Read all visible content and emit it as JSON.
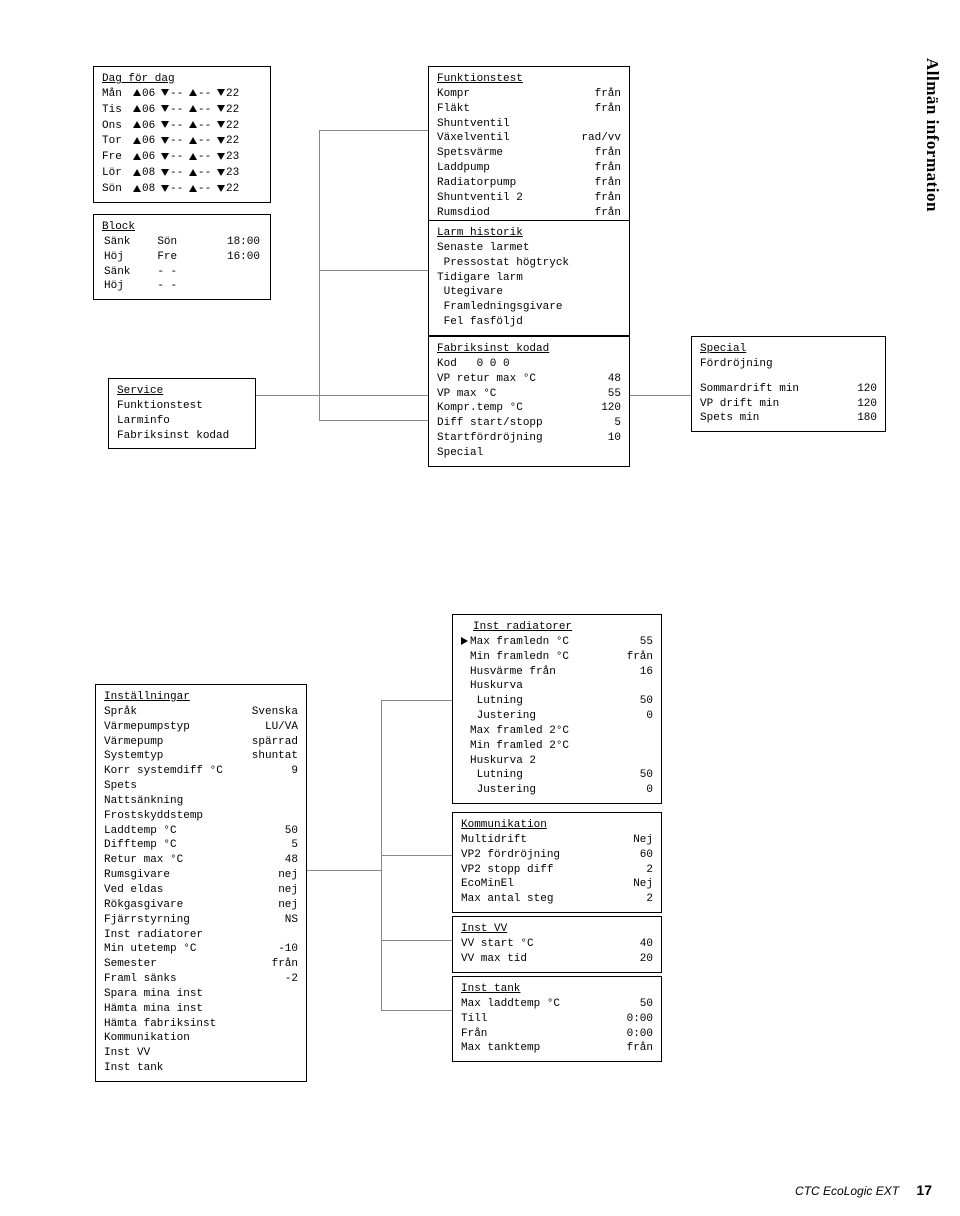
{
  "side_title": "Allmän information",
  "footer": {
    "product": "CTC EcoLogic EXT",
    "page": "17"
  },
  "dag": {
    "title": "Dag för dag",
    "days": [
      "Mån",
      "Tis",
      "Ons",
      "Tor",
      "Fre",
      "Lör",
      "Sön"
    ],
    "vals": [
      [
        "06",
        "--",
        "--",
        "22"
      ],
      [
        "06",
        "--",
        "--",
        "22"
      ],
      [
        "06",
        "--",
        "--",
        "22"
      ],
      [
        "06",
        "--",
        "--",
        "22"
      ],
      [
        "06",
        "--",
        "--",
        "23"
      ],
      [
        "08",
        "--",
        "--",
        "23"
      ],
      [
        "08",
        "--",
        "--",
        "22"
      ]
    ]
  },
  "block": {
    "title": "Block",
    "rows": [
      [
        "Sänk",
        "Sön",
        "18:00"
      ],
      [
        "Höj",
        "Fre",
        "16:00"
      ],
      [
        "Sänk",
        "- -",
        ""
      ],
      [
        "Höj",
        "- -",
        ""
      ]
    ]
  },
  "service": {
    "title": "Service",
    "items": [
      "Funktionstest",
      "Larminfo",
      "Fabriksinst kodad"
    ]
  },
  "funktionstest": {
    "title": "Funktionstest",
    "items": [
      [
        "Kompr",
        "från"
      ],
      [
        "Fläkt",
        "från"
      ],
      [
        "Shuntventil",
        ""
      ],
      [
        "Växelventil",
        "rad/vv"
      ],
      [
        "Spetsvärme",
        "från"
      ],
      [
        "Laddpump",
        "från"
      ],
      [
        "Radiatorpump",
        "från"
      ],
      [
        "Shuntventil 2",
        "från"
      ],
      [
        "Rumsdiod",
        "från"
      ]
    ]
  },
  "larm": {
    "title": "Larm historik",
    "lines": [
      "Senaste larmet",
      " Pressostat högtryck",
      "Tidigare larm",
      " Utegivare",
      " Framledningsgivare",
      " Fel fasföljd"
    ]
  },
  "fabriks": {
    "title": "Fabriksinst kodad",
    "items": [
      [
        "Kod   0 0 0",
        ""
      ],
      [
        "VP retur max °C",
        "48"
      ],
      [
        "VP max °C",
        "55"
      ],
      [
        "Kompr.temp °C",
        "120"
      ],
      [
        "Diff start/stopp",
        "5"
      ],
      [
        "Startfördröjning",
        "10"
      ],
      [
        "Special",
        ""
      ]
    ]
  },
  "special": {
    "title": "Special",
    "subtitle": "Fördröjning",
    "items": [
      [
        "Sommardrift min",
        "120"
      ],
      [
        "VP drift min",
        "120"
      ],
      [
        "Spets min",
        "180"
      ]
    ]
  },
  "installningar": {
    "title": "Inställningar",
    "items": [
      [
        "Språk",
        "Svenska"
      ],
      [
        "Värmepumpstyp",
        "LU/VA"
      ],
      [
        "Värmepump",
        "spärrad"
      ],
      [
        "Systemtyp",
        "shuntat"
      ],
      [
        "Korr systemdiff °C",
        "9"
      ],
      [
        "Spets",
        ""
      ],
      [
        "Nattsänkning",
        ""
      ],
      [
        "Frostskyddstemp",
        ""
      ],
      [
        "Laddtemp °C",
        "50"
      ],
      [
        "Difftemp °C",
        "5"
      ],
      [
        "Retur max °C",
        "48"
      ],
      [
        "Rumsgivare",
        "nej"
      ],
      [
        "Ved eldas",
        "nej"
      ],
      [
        "Rökgasgivare",
        "nej"
      ],
      [
        "Fjärrstyrning",
        "NS"
      ],
      [
        "Inst radiatorer",
        ""
      ],
      [
        "Min utetemp °C",
        "-10"
      ],
      [
        "Semester",
        "från"
      ],
      [
        "Framl sänks",
        "-2"
      ],
      [
        "Spara mina inst",
        ""
      ],
      [
        "Hämta mina inst",
        ""
      ],
      [
        "Hämta fabriksinst",
        ""
      ],
      [
        "Kommunikation",
        ""
      ],
      [
        "Inst VV",
        ""
      ],
      [
        "Inst tank",
        ""
      ]
    ]
  },
  "inst_rad": {
    "title": "Inst radiatorer",
    "items": [
      [
        "Max framledn °C",
        "55"
      ],
      [
        "Min framledn °C",
        "från"
      ],
      [
        "Husvärme från",
        "16"
      ],
      [
        "Huskurva",
        ""
      ],
      [
        " Lutning",
        "50"
      ],
      [
        " Justering",
        "0"
      ],
      [
        "Max framled 2°C",
        ""
      ],
      [
        "Min framled 2°C",
        ""
      ],
      [
        "Huskurva 2",
        ""
      ],
      [
        " Lutning",
        "50"
      ],
      [
        " Justering",
        "0"
      ]
    ],
    "marker_index": 0
  },
  "kommunikation": {
    "title": "Kommunikation",
    "items": [
      [
        "Multidrift",
        "Nej"
      ],
      [
        "VP2 fördröjning",
        "60"
      ],
      [
        "VP2 stopp diff",
        "2"
      ],
      [
        "EcoMinEl",
        "Nej"
      ],
      [
        "Max antal steg",
        "2"
      ]
    ]
  },
  "inst_vv": {
    "title": "Inst VV",
    "items": [
      [
        "VV start °C",
        "40"
      ],
      [
        "VV max tid",
        "20"
      ]
    ]
  },
  "inst_tank": {
    "title": "Inst tank",
    "items": [
      [
        "Max laddtemp °C",
        "50"
      ],
      [
        "Till",
        "0:00"
      ],
      [
        "Från",
        "0:00"
      ],
      [
        "Max tanktemp",
        "från"
      ]
    ]
  }
}
